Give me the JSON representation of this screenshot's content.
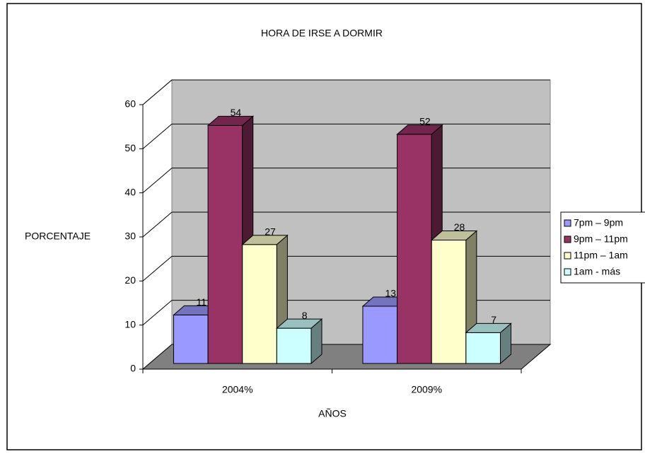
{
  "chart_data": {
    "type": "bar3d",
    "title": "HORA DE IRSE A DORMIR",
    "x_label": "AÑOS",
    "y_label": "PORCENTAJE",
    "categories": [
      "2004%",
      "2009%"
    ],
    "series": [
      {
        "name": "7pm – 9pm",
        "color": "#9999ff",
        "values": [
          11,
          13
        ]
      },
      {
        "name": "9pm – 11pm",
        "color": "#993366",
        "values": [
          54,
          52
        ]
      },
      {
        "name": "11pm – 1am",
        "color": "#ffffcc",
        "values": [
          27,
          28
        ]
      },
      {
        "name": "1am - más",
        "color": "#ccffff",
        "values": [
          8,
          7
        ]
      }
    ],
    "ylim": [
      0,
      60
    ],
    "yticks": [
      0,
      10,
      20,
      30,
      40,
      50,
      60
    ],
    "grid": true,
    "legend": "right"
  }
}
